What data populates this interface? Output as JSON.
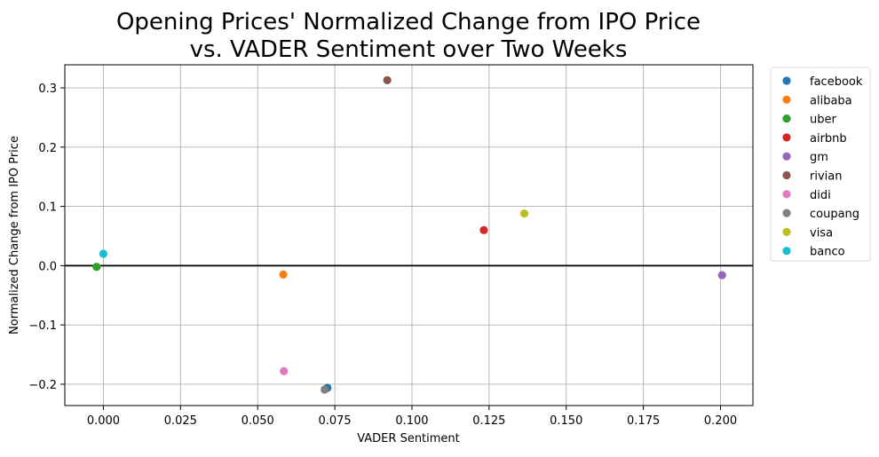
{
  "chart_data": {
    "type": "scatter",
    "title": "Opening Prices' Normalized Change from IPO Price\nvs. VADER Sentiment over Two Weeks",
    "xlabel": "VADER Sentiment",
    "ylabel": "Normalized Change from IPO Price",
    "xlim": [
      -0.0125,
      0.2105
    ],
    "ylim": [
      -0.236,
      0.339
    ],
    "xticks": [
      0.0,
      0.025,
      0.05,
      0.075,
      0.1,
      0.125,
      0.15,
      0.175,
      0.2
    ],
    "xtick_labels": [
      "0.000",
      "0.025",
      "0.050",
      "0.075",
      "0.100",
      "0.125",
      "0.150",
      "0.175",
      "0.200"
    ],
    "yticks": [
      -0.2,
      -0.1,
      0.0,
      0.1,
      0.2,
      0.3
    ],
    "ytick_labels": [
      "−0.2",
      "−0.1",
      "0.0",
      "0.1",
      "0.2",
      "0.3"
    ],
    "grid": true,
    "reference_line_y": 0,
    "legend_position": "outside-right-top",
    "series": [
      {
        "name": "facebook",
        "color": "#1f77b4",
        "x": [
          0.0726
        ],
        "y": [
          -0.206
        ]
      },
      {
        "name": "alibaba",
        "color": "#ff7f0e",
        "x": [
          0.0583
        ],
        "y": [
          -0.015
        ]
      },
      {
        "name": "uber",
        "color": "#2ca02c",
        "x": [
          -0.0022
        ],
        "y": [
          -0.002
        ]
      },
      {
        "name": "airbnb",
        "color": "#d62728",
        "x": [
          0.1233
        ],
        "y": [
          0.06
        ]
      },
      {
        "name": "gm",
        "color": "#9467bd",
        "x": [
          0.2005
        ],
        "y": [
          -0.016
        ]
      },
      {
        "name": "rivian",
        "color": "#8c564b",
        "x": [
          0.092
        ],
        "y": [
          0.313
        ]
      },
      {
        "name": "didi",
        "color": "#e377c2",
        "x": [
          0.0585
        ],
        "y": [
          -0.178
        ]
      },
      {
        "name": "coupang",
        "color": "#7f7f7f",
        "x": [
          0.0717
        ],
        "y": [
          -0.209
        ]
      },
      {
        "name": "visa",
        "color": "#bcbd22",
        "x": [
          0.1364
        ],
        "y": [
          0.088
        ]
      },
      {
        "name": "banco",
        "color": "#17becf",
        "x": [
          0.0
        ],
        "y": [
          0.02
        ]
      }
    ]
  }
}
